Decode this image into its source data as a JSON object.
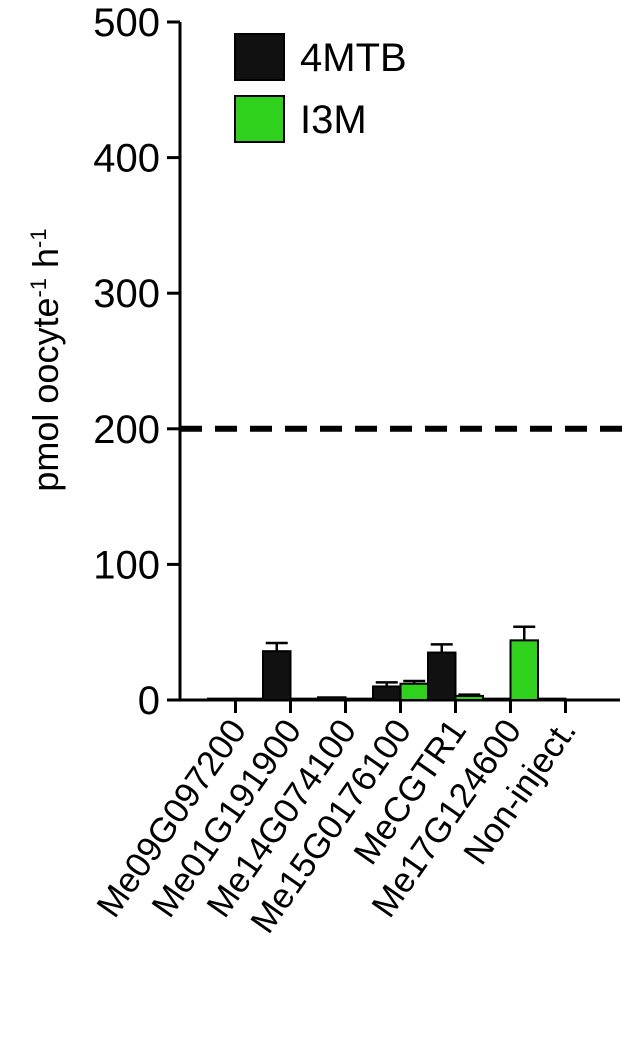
{
  "chart_data": {
    "type": "bar",
    "ylabel": [
      {
        "text": "pmol oocyte"
      },
      {
        "text": "-1",
        "sup": true
      },
      {
        "text": " h"
      },
      {
        "text": "-1",
        "sup": true
      }
    ],
    "categories": [
      "Me09G097200",
      "Me01G191900",
      "Me14G074100",
      "Me15G0176100",
      "MeCGTR1",
      "Me17G124600",
      "Non-inject."
    ],
    "series": [
      {
        "name": "4MTB",
        "color": "#111111",
        "values": [
          1,
          36,
          2,
          10,
          35,
          1,
          1
        ],
        "errors": [
          0,
          6,
          0,
          3,
          6,
          0,
          0
        ]
      },
      {
        "name": "I3M",
        "color": "#2fd11c",
        "values": [
          1,
          1,
          1,
          12,
          3,
          44,
          0
        ],
        "errors": [
          0,
          0,
          0,
          2,
          1,
          10,
          0
        ]
      }
    ],
    "ylim": [
      0,
      500
    ],
    "yticks": [
      0,
      100,
      200,
      300,
      400,
      500
    ],
    "hline": 200,
    "legend": "top-left"
  }
}
